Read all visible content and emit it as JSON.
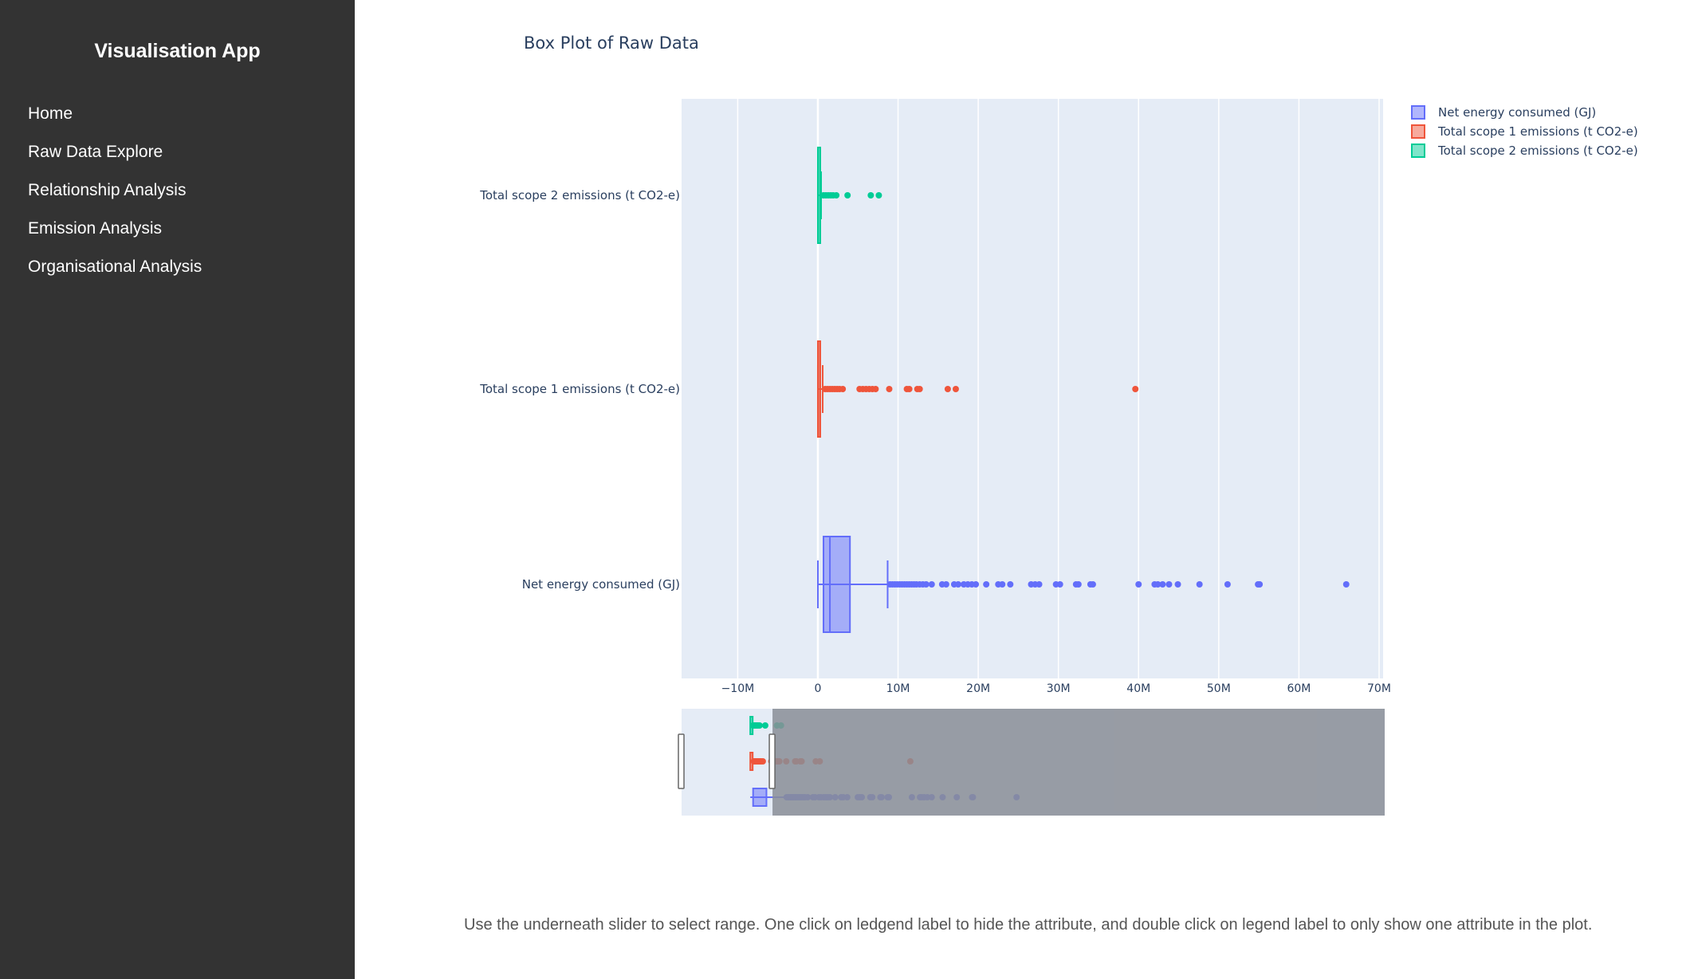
{
  "sidebar": {
    "title": "Visualisation App",
    "items": [
      {
        "label": "Home"
      },
      {
        "label": "Raw Data Explore"
      },
      {
        "label": "Relationship Analysis"
      },
      {
        "label": "Emission Analysis"
      },
      {
        "label": "Organisational Analysis"
      }
    ]
  },
  "colors": {
    "sidebar_bg": "#333333",
    "plot_bg": "#e5ecf6",
    "net_energy": "#636efa",
    "scope1": "#ef553b",
    "scope2": "#00cc96",
    "slider_mask": "#8a8e96"
  },
  "chart_data": {
    "type": "box",
    "orientation": "horizontal",
    "title": "Box Plot of Raw Data",
    "xlim": [
      -17000000,
      70500000
    ],
    "x_ticks": [
      "−10M",
      "0",
      "10M",
      "20M",
      "30M",
      "40M",
      "50M",
      "60M",
      "70M"
    ],
    "x_tick_values": [
      -10000000,
      0,
      10000000,
      20000000,
      30000000,
      40000000,
      50000000,
      60000000,
      70000000
    ],
    "grid": true,
    "legend_position": "top-right",
    "series": [
      {
        "name": "Net energy consumed (GJ)",
        "color_key": "net_energy",
        "min": 0,
        "q1": 700000,
        "median": 1500000,
        "q3": 4000000,
        "upper_fence": 8700000,
        "outliers": [
          9000000,
          9300000,
          9600000,
          9900000,
          10200000,
          10500000,
          10800000,
          11100000,
          11400000,
          11700000,
          12000000,
          12300000,
          12700000,
          13100000,
          13500000,
          14200000,
          15500000,
          16000000,
          17000000,
          17500000,
          18200000,
          18700000,
          19200000,
          19700000,
          21000000,
          22500000,
          23000000,
          24000000,
          26600000,
          27100000,
          27600000,
          29700000,
          30200000,
          32200000,
          32500000,
          34000000,
          34300000,
          40000000,
          42000000,
          42400000,
          43000000,
          43800000,
          44900000,
          47600000,
          51100000,
          54900000,
          55100000,
          65900000
        ]
      },
      {
        "name": "Total scope 1 emissions (t CO2-e)",
        "color_key": "scope1",
        "min": 0,
        "q1": 0,
        "median": 50000,
        "q3": 300000,
        "upper_fence": 600000,
        "outliers": [
          900000,
          1200000,
          1500000,
          1800000,
          2100000,
          2400000,
          2700000,
          3100000,
          5200000,
          5600000,
          6000000,
          6400000,
          6800000,
          7200000,
          8900000,
          11100000,
          11400000,
          12400000,
          12700000,
          16200000,
          17200000,
          39600000
        ]
      },
      {
        "name": "Total scope 2 emissions (t CO2-e)",
        "color_key": "scope2",
        "min": 0,
        "q1": 0,
        "median": 30000,
        "q3": 200000,
        "upper_fence": 400000,
        "outliers": [
          700000,
          1000000,
          1300000,
          1600000,
          1900000,
          2300000,
          3700000,
          6600000,
          7600000
        ]
      }
    ],
    "slider_range": [
      -17000000,
      5500000
    ]
  },
  "note": "Use the underneath slider to select range. One click on ledgend label to hide the attribute, and double click on legend label to only show one attribute in the plot."
}
